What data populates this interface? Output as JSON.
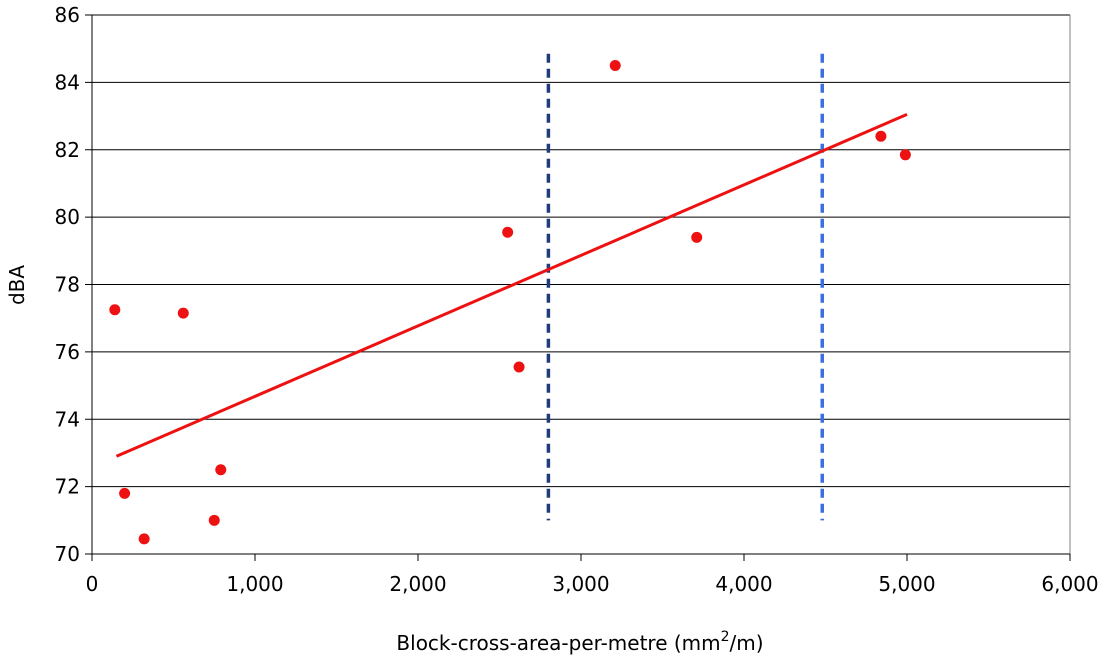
{
  "chart_data": {
    "type": "scatter",
    "xlabel": "Block-cross-area-per-metre (mm",
    "xlabel_sup": "2",
    "xlabel_suffix": "/m)",
    "ylabel": "dBA",
    "xlim": [
      0,
      6000
    ],
    "ylim": [
      70,
      86
    ],
    "x_ticks": [
      "0",
      "1,000",
      "2,000",
      "3,000",
      "4,000",
      "5,000",
      "6,000"
    ],
    "x_tick_values": [
      0,
      1000,
      2000,
      3000,
      4000,
      5000,
      6000
    ],
    "y_ticks": [
      "70",
      "72",
      "74",
      "76",
      "78",
      "80",
      "82",
      "84",
      "86"
    ],
    "y_tick_values": [
      70,
      72,
      74,
      76,
      78,
      80,
      82,
      84,
      86
    ],
    "grid": "horizontal",
    "points": [
      {
        "x": 140,
        "y": 77.25
      },
      {
        "x": 200,
        "y": 71.8
      },
      {
        "x": 320,
        "y": 70.45
      },
      {
        "x": 560,
        "y": 77.15
      },
      {
        "x": 750,
        "y": 71.0
      },
      {
        "x": 790,
        "y": 72.5
      },
      {
        "x": 2550,
        "y": 79.55
      },
      {
        "x": 2620,
        "y": 75.55
      },
      {
        "x": 3210,
        "y": 84.5
      },
      {
        "x": 3710,
        "y": 79.4
      },
      {
        "x": 4840,
        "y": 82.4
      },
      {
        "x": 4990,
        "y": 81.85
      }
    ],
    "trendline": {
      "x1": 150,
      "y1": 72.9,
      "x2": 5000,
      "y2": 83.05
    },
    "vlines": [
      {
        "x": 2800,
        "y_from": 71.0,
        "y_to": 84.85,
        "color": "#1f3d7a"
      },
      {
        "x": 4480,
        "y_from": 71.0,
        "y_to": 84.85,
        "color": "#3b6fe0"
      }
    ],
    "colors": {
      "points": "#ee1111",
      "trendline": "#ee1111",
      "grid": "#000000"
    }
  }
}
